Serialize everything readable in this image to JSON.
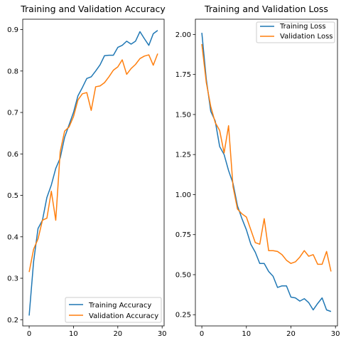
{
  "chart_data": [
    {
      "type": "line",
      "title": "Training and Validation Accuracy",
      "xlabel": "",
      "ylabel": "",
      "xlim": [
        -1.45,
        30.45
      ],
      "ylim": [
        0.185,
        0.925
      ],
      "xticks": [
        0,
        10,
        20,
        30
      ],
      "yticks": [
        0.2,
        0.3,
        0.4,
        0.5,
        0.6,
        0.7,
        0.8,
        0.9
      ],
      "yticklabels": [
        "0.2",
        "0.3",
        "0.4",
        "0.5",
        "0.6",
        "0.7",
        "0.8",
        "0.9"
      ],
      "legend_position": "lower right",
      "x": [
        0,
        1,
        2,
        3,
        4,
        5,
        6,
        7,
        8,
        9,
        10,
        11,
        12,
        13,
        14,
        15,
        16,
        17,
        18,
        19,
        20,
        21,
        22,
        23,
        24,
        25,
        26,
        27,
        28,
        29
      ],
      "series": [
        {
          "name": "Training Accuracy",
          "color": "#1f77b4",
          "values": [
            0.21,
            0.34,
            0.42,
            0.44,
            0.495,
            0.525,
            0.565,
            0.59,
            0.64,
            0.67,
            0.7,
            0.74,
            0.76,
            0.782,
            0.786,
            0.8,
            0.815,
            0.837,
            0.838,
            0.838,
            0.857,
            0.862,
            0.872,
            0.865,
            0.872,
            0.895,
            0.878,
            0.862,
            0.89,
            0.898
          ]
        },
        {
          "name": "Validation Accuracy",
          "color": "#ff7f0e",
          "values": [
            0.315,
            0.37,
            0.395,
            0.44,
            0.445,
            0.51,
            0.44,
            0.605,
            0.655,
            0.665,
            0.69,
            0.73,
            0.745,
            0.748,
            0.705,
            0.762,
            0.764,
            0.772,
            0.786,
            0.802,
            0.81,
            0.827,
            0.792,
            0.806,
            0.816,
            0.83,
            0.836,
            0.839,
            0.814,
            0.842
          ]
        }
      ]
    },
    {
      "type": "line",
      "title": "Training and Validation Loss",
      "xlabel": "",
      "ylabel": "",
      "xlim": [
        -1.45,
        30.45
      ],
      "ylim": [
        0.18,
        2.095
      ],
      "xticks": [
        0,
        10,
        20,
        30
      ],
      "yticks": [
        0.25,
        0.5,
        0.75,
        1.0,
        1.25,
        1.5,
        1.75,
        2.0
      ],
      "yticklabels": [
        "0.25",
        "0.50",
        "0.75",
        "1.00",
        "1.25",
        "1.50",
        "1.75",
        "2.00"
      ],
      "legend_position": "upper right",
      "x": [
        0,
        1,
        2,
        3,
        4,
        5,
        6,
        7,
        8,
        9,
        10,
        11,
        12,
        13,
        14,
        15,
        16,
        17,
        18,
        19,
        20,
        21,
        22,
        23,
        24,
        25,
        26,
        27,
        28,
        29
      ],
      "series": [
        {
          "name": "Training Loss",
          "color": "#1f77b4",
          "values": [
            2.01,
            1.72,
            1.52,
            1.46,
            1.3,
            1.25,
            1.15,
            1.07,
            0.93,
            0.85,
            0.78,
            0.69,
            0.64,
            0.57,
            0.57,
            0.52,
            0.49,
            0.42,
            0.43,
            0.43,
            0.36,
            0.355,
            0.335,
            0.35,
            0.325,
            0.28,
            0.32,
            0.355,
            0.28,
            0.27
          ]
        },
        {
          "name": "Validation Loss",
          "color": "#ff7f0e",
          "values": [
            1.94,
            1.7,
            1.55,
            1.45,
            1.4,
            1.26,
            1.43,
            1.05,
            0.91,
            0.88,
            0.86,
            0.78,
            0.7,
            0.69,
            0.85,
            0.65,
            0.65,
            0.645,
            0.625,
            0.59,
            0.57,
            0.58,
            0.61,
            0.65,
            0.615,
            0.625,
            0.565,
            0.565,
            0.645,
            0.52
          ]
        }
      ]
    }
  ]
}
